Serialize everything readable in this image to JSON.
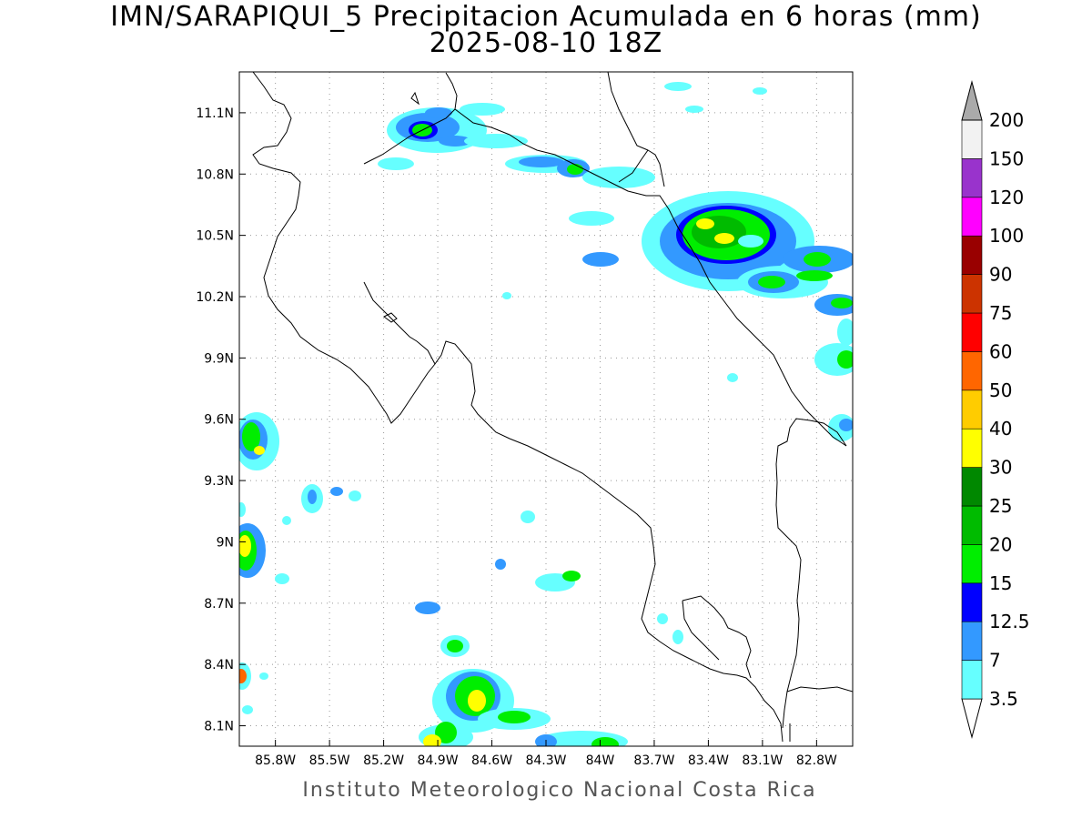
{
  "title_line1": "IMN/SARAPIQUI_5 Precipitacion Acumulada en 6 horas (mm)",
  "title_line2": "2025-08-10 18Z",
  "footer": "Instituto Meteorologico Nacional Costa Rica",
  "map": {
    "lon_range": [
      -86.0,
      -82.6
    ],
    "lat_range": [
      8.0,
      11.3
    ],
    "lon_ticks": [
      "85.8W",
      "85.5W",
      "85.2W",
      "84.9W",
      "84.6W",
      "84.3W",
      "84W",
      "83.7W",
      "83.4W",
      "83.1W",
      "82.8W"
    ],
    "lat_ticks": [
      "11.1N",
      "10.8N",
      "10.5N",
      "10.2N",
      "9.9N",
      "9.6N",
      "9.3N",
      "9N",
      "8.7N",
      "8.4N",
      "8.1N"
    ],
    "grid": true
  },
  "colorbar": {
    "levels": [
      "3.5",
      "7",
      "12.5",
      "15",
      "20",
      "25",
      "30",
      "40",
      "50",
      "60",
      "75",
      "90",
      "100",
      "120",
      "150",
      "200"
    ],
    "colors": [
      "#ffffff",
      "#66ffff",
      "#3399ff",
      "#0000ff",
      "#00ee00",
      "#00bb00",
      "#008800",
      "#ffff00",
      "#ffcc00",
      "#ff6600",
      "#ff0000",
      "#cc3300",
      "#990000",
      "#ff00ff",
      "#9933cc",
      "#f2f2f2",
      "#aaaaaa"
    ]
  }
}
